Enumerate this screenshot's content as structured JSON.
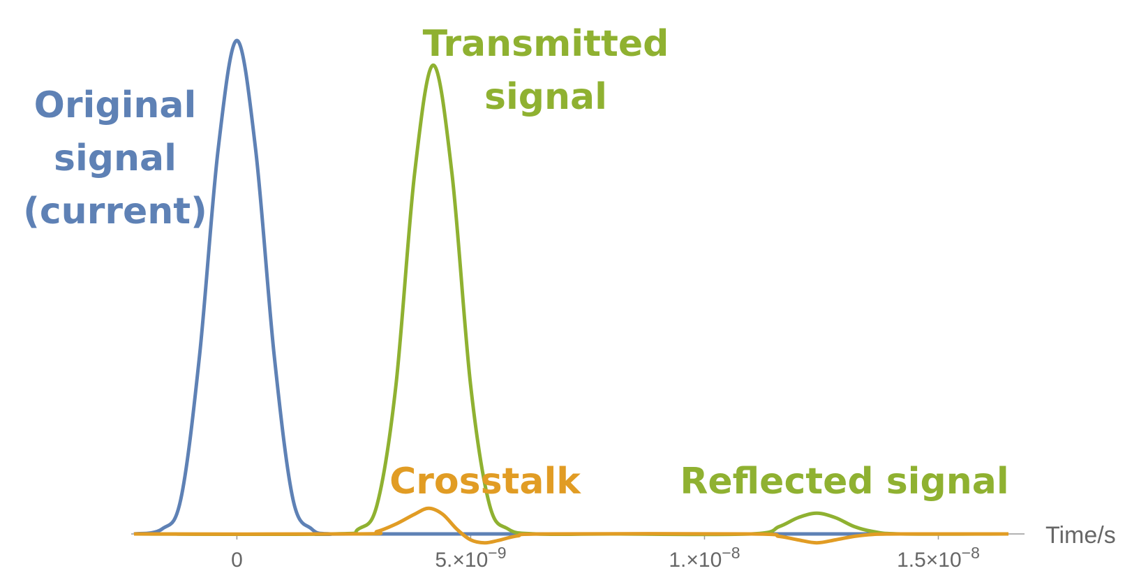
{
  "chart_data": {
    "type": "line",
    "title": "",
    "xlabel": "Time/s",
    "ylabel": "",
    "xlim": [
      -2.2e-09,
      1.65e-08
    ],
    "ylim": [
      -0.05,
      1.0
    ],
    "grid": false,
    "legend": "none",
    "x_ticks": [
      {
        "value": 0,
        "label": "0",
        "exp": ""
      },
      {
        "value": 5e-09,
        "label": "5.×10",
        "exp": "−9"
      },
      {
        "value": 1e-08,
        "label": "1.×10",
        "exp": "−8"
      },
      {
        "value": 1.5e-08,
        "label": "1.5×10",
        "exp": "−8"
      }
    ],
    "series": [
      {
        "color": "#5E81B5",
        "x": [
          -2.2e-09,
          -1.6e-09,
          -1.2e-09,
          -8e-10,
          -4e-10,
          0,
          4e-10,
          8e-10,
          1.2e-09,
          1.6e-09,
          2e-09,
          3e-09,
          1.65e-08
        ],
        "y": [
          0,
          0.01,
          0.07,
          0.36,
          0.78,
          1.0,
          0.78,
          0.36,
          0.07,
          0.01,
          0,
          0,
          0
        ]
      },
      {
        "color": "#8FB131",
        "x": [
          -2.2e-09,
          2e-09,
          2.6e-09,
          3e-09,
          3.4e-09,
          3.8e-09,
          4.2e-09,
          4.6e-09,
          5e-09,
          5.4e-09,
          5.8e-09,
          6.4e-09,
          8e-09,
          1.1e-08,
          1.16e-08,
          1.2e-08,
          1.24e-08,
          1.28e-08,
          1.32e-08,
          1.36e-08,
          1.42e-08,
          1.65e-08
        ],
        "y": [
          0,
          0,
          0.01,
          0.06,
          0.3,
          0.73,
          0.95,
          0.73,
          0.3,
          0.06,
          0.01,
          0,
          0,
          0,
          0.015,
          0.033,
          0.042,
          0.033,
          0.015,
          0.005,
          0,
          0
        ]
      },
      {
        "color": "#E19C24",
        "x": [
          -2.2e-09,
          2.6e-09,
          3e-09,
          3.4e-09,
          3.8e-09,
          4.1e-09,
          4.4e-09,
          4.7e-09,
          5e-09,
          5.3e-09,
          5.6e-09,
          6e-09,
          6.6e-09,
          1.1e-08,
          1.16e-08,
          1.2e-08,
          1.24e-08,
          1.28e-08,
          1.32e-08,
          1.36e-08,
          1.42e-08,
          1.65e-08
        ],
        "y": [
          0,
          0,
          0.005,
          0.02,
          0.04,
          0.052,
          0.04,
          0.01,
          -0.012,
          -0.018,
          -0.013,
          -0.004,
          0,
          0,
          -0.005,
          -0.012,
          -0.018,
          -0.012,
          -0.005,
          -0.001,
          0,
          0
        ]
      }
    ],
    "annotations": [
      {
        "lines": [
          "Original",
          "signal",
          "(current)"
        ],
        "color": "#5E81B5"
      },
      {
        "lines": [
          "Transmitted",
          "signal"
        ],
        "color": "#8FB131"
      },
      {
        "lines": [
          "Crosstalk"
        ],
        "color": "#E19C24"
      },
      {
        "lines": [
          "Reflected signal"
        ],
        "color": "#8FB131"
      }
    ]
  }
}
